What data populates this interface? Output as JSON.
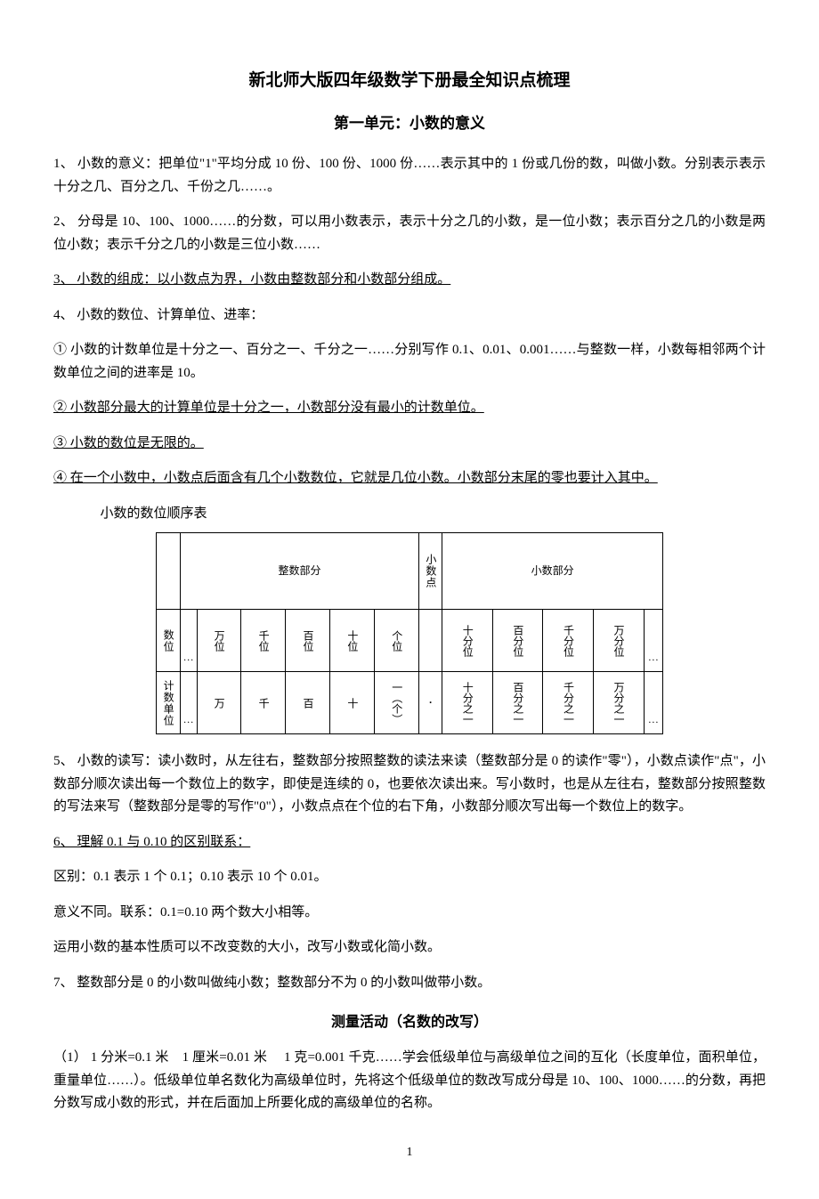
{
  "title": "新北师大版四年级数学下册最全知识点梳理",
  "unit_title": "第一单元：小数的意义",
  "p1": "1、 小数的意义：把单位\"1\"平均分成 10 份、100 份、1000 份……表示其中的 1 份或几份的数，叫做小数。分别表示表示十分之几、百分之几、千份之几……。",
  "p2": "2、 分母是 10、100、1000……的分数，可以用小数表示，表示十分之几的小数，是一位小数；表示百分之几的小数是两位小数；表示千分之几的小数是三位小数……",
  "p3": "3、 小数的组成：以小数点为界，小数由整数部分和小数部分组成。",
  "p4": "4、 小数的数位、计算单位、进率：",
  "p4_1": " ① 小数的计数单位是十分之一、百分之一、千分之一……分别写作 0.1、0.01、0.001……与整数一样，小数每相邻两个计数单位之间的进率是 10。",
  "p4_2": "② 小数部分最大的计算单位是十分之一，小数部分没有最小的计数单位。",
  "p4_3": "③ 小数的数位是无限的。",
  "p4_4": "④ 在一个小数中，小数点后面含有几个小数数位，它就是几位小数。小数部分末尾的零也要计入其中。",
  "table_caption": "小数的数位顺序表",
  "table": {
    "header_int": "整数部分",
    "header_dot": "小数点",
    "header_dec": "小数部分",
    "row1_label": "数位",
    "row2_label": "计数单位",
    "ellipsis": "…",
    "dot": "·",
    "int_places": [
      "万位",
      "千位",
      "百位",
      "十位",
      "个位"
    ],
    "int_units": [
      "万",
      "千",
      "百",
      "十",
      "一（个）"
    ],
    "dec_places": [
      "十分位",
      "百分位",
      "千分位",
      "万分位"
    ],
    "dec_units": [
      "十分之一",
      "百分之一",
      "千分之一",
      "万分之一"
    ]
  },
  "p5": "5、 小数的读写：读小数时，从左往右，整数部分按照整数的读法来读（整数部分是 0 的读作\"零\"），小数点读作\"点\"，小数部分顺次读出每一个数位上的数字，即使是连续的 0，也要依次读出来。写小数时，也是从左往右，整数部分按照整数的写法来写（整数部分是零的写作\"0\"），小数点点在个位的右下角，小数部分顺次写出每一个数位上的数字。",
  "p6": "6、 理解 0.1 与 0.10 的区别联系：",
  "p6_1": "区别：0.1 表示 1 个 0.1；0.10 表示 10 个 0.01。",
  "p6_2": "意义不同。联系：0.1=0.10 两个数大小相等。",
  "p6_3": "运用小数的基本性质可以不改变数的大小，改写小数或化简小数。",
  "p7": "7、 整数部分是 0 的小数叫做纯小数；整数部分不为 0 的小数叫做带小数。",
  "section2_title": "测量活动（名数的改写）",
  "s2_p1": "（1） 1 分米=0.1 米　1 厘米=0.01 米　 1 克=0.001 千克……学会低级单位与高级单位之间的互化（长度单位，面积单位，重量单位……）。低级单位单名数化为高级单位时，先将这个低级单位的数改写成分母是 10、100、1000……的分数，再把分数写成小数的形式，并在后面加上所要化成的高级单位的名称。",
  "page_number": "1"
}
